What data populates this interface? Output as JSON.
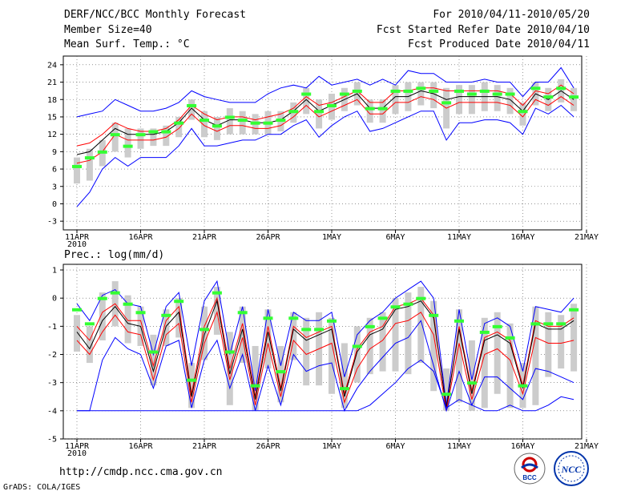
{
  "header": {
    "title": "DERF/NCC/BCC Monthly Forecast",
    "member_size": "Member Size=40",
    "variable": "Mean Surf. Temp.: °C",
    "period": "For 2010/04/11-2010/05/20",
    "started": "Fcst Started Refer Date 2010/04/10",
    "produced": "Fcst Produced Date 2010/04/11"
  },
  "footer": {
    "url": "http://cmdp.ncc.cma.gov.cn",
    "credit": "GrADS: COLA/IGES",
    "logo_bcc": "BCC",
    "logo_ncc": "NCC"
  },
  "colors": {
    "max_min": "#0000ff",
    "spread": "#ff0000",
    "mean": "#000000",
    "median": "#33ff33",
    "box": "#cccccc"
  },
  "chart_data": [
    {
      "type": "line",
      "title": "Mean Surf. Temp.: °C",
      "x": [
        "11APR",
        "12APR",
        "13APR",
        "14APR",
        "15APR",
        "16APR",
        "17APR",
        "18APR",
        "19APR",
        "20APR",
        "21APR",
        "22APR",
        "23APR",
        "24APR",
        "25APR",
        "26APR",
        "27APR",
        "28APR",
        "29APR",
        "30APR",
        "1MAY",
        "2MAY",
        "3MAY",
        "4MAY",
        "5MAY",
        "6MAY",
        "7MAY",
        "8MAY",
        "9MAY",
        "10MAY",
        "11MAY",
        "12MAY",
        "13MAY",
        "14MAY",
        "15MAY",
        "16MAY",
        "17MAY",
        "18MAY",
        "19MAY",
        "20MAY"
      ],
      "xticks": [
        "11APR",
        "16APR",
        "21APR",
        "26APR",
        "1MAY",
        "6MAY",
        "11MAY",
        "16MAY",
        "21MAY"
      ],
      "xtick_year": "2010",
      "ylim": [
        -4,
        25
      ],
      "yticks": [
        "24",
        "21",
        "18",
        "15",
        "12",
        "9",
        "6",
        "3",
        "0",
        "-3"
      ],
      "series": [
        {
          "name": "max",
          "values": [
            15,
            15.5,
            16,
            18,
            17,
            16,
            16,
            16.5,
            17.5,
            19.5,
            18.5,
            18,
            17.5,
            17.5,
            17.5,
            19,
            20,
            20.5,
            20,
            22,
            20.5,
            21,
            21.5,
            20.5,
            21.5,
            20.5,
            23,
            22.5,
            22.5,
            21,
            21,
            21,
            21.5,
            21,
            21,
            18.5,
            21,
            21,
            23.5,
            20
          ]
        },
        {
          "name": "upper",
          "values": [
            10,
            10.5,
            12,
            14,
            13,
            12.5,
            12.5,
            13,
            14.5,
            17,
            15.5,
            14.5,
            15,
            15,
            14.5,
            15,
            15.5,
            16.5,
            18.5,
            17,
            17.5,
            18.5,
            19.5,
            17.5,
            17.5,
            19.5,
            19.5,
            20,
            20,
            19.5,
            19.5,
            19.5,
            19.5,
            19.5,
            19,
            17,
            19.5,
            19,
            20.5,
            19
          ]
        },
        {
          "name": "mean",
          "values": [
            8.5,
            9,
            11,
            13,
            12,
            12,
            12,
            12.5,
            14,
            16.5,
            14.5,
            13.5,
            14.5,
            14.5,
            14,
            14,
            14.5,
            16,
            18,
            16,
            17,
            18,
            19,
            16.5,
            16.5,
            18.5,
            18.5,
            19.5,
            19,
            18,
            18.5,
            18.5,
            18.5,
            18.5,
            18,
            16,
            19,
            18,
            19.5,
            18
          ]
        },
        {
          "name": "lower",
          "values": [
            7,
            7.5,
            9,
            12,
            11,
            11,
            11,
            11.5,
            13,
            15.5,
            13.5,
            12.5,
            13.5,
            13.5,
            13,
            13,
            13.5,
            15,
            17,
            15,
            16,
            17,
            18,
            15.5,
            15.5,
            17.5,
            17.5,
            18.5,
            18,
            16.5,
            17.5,
            17.5,
            17.5,
            17.5,
            17,
            15,
            18,
            17,
            18.5,
            17
          ]
        },
        {
          "name": "min",
          "values": [
            -0.5,
            2,
            6,
            8,
            6.5,
            8,
            8,
            8,
            10,
            13,
            10,
            10,
            10.5,
            11,
            11,
            12,
            12,
            13.5,
            14.5,
            11.5,
            13.5,
            15,
            16,
            12.5,
            13,
            14,
            15,
            16,
            16,
            11,
            14,
            14,
            14.5,
            14.5,
            14,
            12,
            16.5,
            15.5,
            17,
            15
          ]
        },
        {
          "name": "median",
          "values": [
            6.5,
            8,
            9,
            12,
            10,
            12,
            12.5,
            12.5,
            14,
            17,
            14.5,
            13.5,
            15,
            14.5,
            14,
            14,
            14.5,
            16,
            19,
            16,
            17,
            19,
            19.5,
            16.5,
            16.5,
            19.5,
            19.5,
            20,
            19.5,
            17.5,
            19.5,
            19,
            19.5,
            19,
            19,
            16,
            20,
            18.5,
            20,
            18.5
          ]
        }
      ],
      "boxes": {
        "q75": [
          8,
          9.5,
          11,
          14,
          13,
          13,
          13,
          13.5,
          15,
          18,
          16,
          15,
          16.5,
          16,
          15.5,
          16,
          16,
          17.5,
          20,
          18,
          19,
          20,
          21,
          18,
          18,
          20.5,
          21,
          21,
          21,
          20,
          20.5,
          20.5,
          21,
          20.5,
          20,
          17.5,
          21,
          20,
          21.5,
          20
        ],
        "q25": [
          3.5,
          4,
          6.5,
          9,
          8,
          9.5,
          10,
          10,
          11.5,
          14.5,
          11.5,
          11,
          12,
          12,
          12,
          12,
          12.5,
          14,
          15.5,
          13,
          14.5,
          16,
          17,
          14,
          14,
          15.5,
          16,
          17,
          16.5,
          13,
          15.5,
          15.5,
          16,
          16,
          15.5,
          13.5,
          17,
          16,
          17.5,
          16
        ]
      }
    },
    {
      "type": "line",
      "title": "Prec.: log(mm/d)",
      "x": [
        "11APR",
        "12APR",
        "13APR",
        "14APR",
        "15APR",
        "16APR",
        "17APR",
        "18APR",
        "19APR",
        "20APR",
        "21APR",
        "22APR",
        "23APR",
        "24APR",
        "25APR",
        "26APR",
        "27APR",
        "28APR",
        "29APR",
        "30APR",
        "1MAY",
        "2MAY",
        "3MAY",
        "4MAY",
        "5MAY",
        "6MAY",
        "7MAY",
        "8MAY",
        "9MAY",
        "10MAY",
        "11MAY",
        "12MAY",
        "13MAY",
        "14MAY",
        "15MAY",
        "16MAY",
        "17MAY",
        "18MAY",
        "19MAY",
        "20MAY"
      ],
      "xticks": [
        "11APR",
        "16APR",
        "21APR",
        "26APR",
        "1MAY",
        "6MAY",
        "11MAY",
        "16MAY",
        "21MAY"
      ],
      "xtick_year": "2010",
      "ylim": [
        -5,
        1.2
      ],
      "yticks": [
        "1",
        "0",
        "-1",
        "-2",
        "-3",
        "-4",
        "-5"
      ],
      "series": [
        {
          "name": "max",
          "values": [
            -0.2,
            -0.8,
            0.1,
            0.3,
            -0.2,
            -0.3,
            -2,
            -0.3,
            0.2,
            -2.4,
            -0.1,
            0.6,
            -2,
            -0.3,
            -3.3,
            -0.4,
            -2.4,
            -0.5,
            -0.8,
            -0.8,
            -0.5,
            -2.8,
            -1.3,
            -0.8,
            -0.5,
            0,
            0.3,
            0.6,
            0,
            -3.8,
            -0.4,
            -2.9,
            -0.9,
            -0.7,
            -1,
            -2.6,
            -0.3,
            -0.4,
            -0.5,
            0
          ]
        },
        {
          "name": "upper",
          "values": [
            -1,
            -1.5,
            -0.5,
            -0.2,
            -0.8,
            -0.8,
            -2.4,
            -0.8,
            -0.3,
            -3.4,
            -1,
            0,
            -2.5,
            -0.9,
            -3.5,
            -1,
            -3.2,
            -1,
            -1.4,
            -1.2,
            -1,
            -3.4,
            -1.8,
            -1.2,
            -1,
            -0.3,
            -0.2,
            0,
            -0.6,
            -3.9,
            -1,
            -3.3,
            -1.4,
            -1.2,
            -1.5,
            -3.1,
            -0.8,
            -1,
            -1,
            -0.7
          ]
        },
        {
          "name": "mean",
          "values": [
            -1.2,
            -1.8,
            -0.8,
            -0.3,
            -0.9,
            -1,
            -2.6,
            -1,
            -0.5,
            -3.5,
            -1.3,
            -0.1,
            -2.7,
            -1.1,
            -3.6,
            -1.2,
            -3.3,
            -1.1,
            -1.5,
            -1.3,
            -1.1,
            -3.5,
            -1.9,
            -1.3,
            -1.1,
            -0.4,
            -0.3,
            -0.1,
            -0.7,
            -3.9,
            -1.1,
            -3.4,
            -1.5,
            -1.3,
            -1.6,
            -3.2,
            -0.9,
            -1.1,
            -1.1,
            -0.8
          ]
        },
        {
          "name": "lower",
          "values": [
            -1.5,
            -2,
            -1.2,
            -0.6,
            -1.2,
            -1.3,
            -2.9,
            -1.3,
            -0.9,
            -3.7,
            -1.6,
            -0.5,
            -2.9,
            -1.4,
            -3.8,
            -1.6,
            -3.5,
            -1.5,
            -2,
            -1.8,
            -1.6,
            -3.7,
            -2.5,
            -1.8,
            -1.5,
            -0.9,
            -0.8,
            -0.5,
            -1.3,
            -4,
            -1.6,
            -3.6,
            -2,
            -1.8,
            -2.2,
            -3.4,
            -1.4,
            -1.6,
            -1.6,
            -1.5
          ]
        },
        {
          "name": "min",
          "values": [
            -4,
            -4,
            -2.2,
            -1.4,
            -1.8,
            -2,
            -3.2,
            -1.7,
            -1.5,
            -3.9,
            -2.2,
            -1.5,
            -3.2,
            -2,
            -4,
            -2.4,
            -3.8,
            -2,
            -2.6,
            -2.4,
            -2.3,
            -4,
            -3.2,
            -2.6,
            -2.1,
            -1.6,
            -1.4,
            -0.8,
            -2.4,
            -4,
            -2.6,
            -3.8,
            -2.8,
            -2.8,
            -3.2,
            -3.6,
            -2.5,
            -2.6,
            -2.8,
            -3
          ]
        },
        {
          "name": "floor",
          "values": [
            -4,
            -4,
            -4,
            -4,
            -4,
            -4,
            -4,
            -4,
            -4,
            -4,
            -4,
            -4,
            -4,
            -4,
            -4,
            -4,
            -4,
            -4,
            -4,
            -4,
            -4,
            -4,
            -4,
            -3.8,
            -3.4,
            -3,
            -2.5,
            -2.2,
            -2.6,
            -3.9,
            -3.6,
            -3.8,
            -4,
            -4,
            -3.8,
            -4,
            -4,
            -3.8,
            -3.5,
            -3.6
          ]
        },
        {
          "name": "median",
          "values": [
            -0.4,
            -0.9,
            0,
            0.2,
            -0.2,
            -0.5,
            -1.9,
            -0.6,
            -0.1,
            -2.9,
            -1.1,
            0.2,
            -1.9,
            -0.5,
            -3.1,
            -0.7,
            -2.6,
            -0.7,
            -1.1,
            -1.1,
            -0.8,
            -3.2,
            -1.7,
            -1,
            -0.7,
            -0.3,
            -0.2,
            0,
            -0.6,
            -3.4,
            -0.8,
            -3,
            -1.2,
            -1,
            -1.4,
            -3.1,
            -0.9,
            -0.9,
            -0.9,
            -0.4
          ]
        }
      ],
      "boxes": {
        "q75": [
          -0.6,
          -1,
          0.2,
          0.6,
          0.1,
          -0.3,
          -1.3,
          -0.4,
          0,
          -2.3,
          -0.3,
          0.4,
          -1.2,
          -0.3,
          -1.7,
          -0.4,
          -1.7,
          -0.5,
          -0.7,
          -0.5,
          -0.7,
          -1.6,
          -1,
          -0.7,
          -0.5,
          0,
          0.2,
          0.4,
          -0.1,
          -2.5,
          -0.4,
          -1.5,
          -0.7,
          -0.5,
          -0.9,
          -2.3,
          -0.3,
          -0.5,
          -0.6,
          -0.2
        ],
        "q25": [
          -1.9,
          -2.3,
          -1.5,
          -1,
          -1.6,
          -1.7,
          -3.1,
          -1.7,
          -1.4,
          -3.9,
          -2.2,
          -1.3,
          -3.8,
          -2.3,
          -4,
          -2.5,
          -3.7,
          -2.2,
          -3.1,
          -3.1,
          -3.4,
          -3.9,
          -3,
          -2.7,
          -2.6,
          -2.6,
          -2.7,
          -2.3,
          -3.3,
          -4,
          -3.7,
          -4,
          -3.9,
          -3.4,
          -3.9,
          -3.9,
          -3.8,
          -2.8,
          -2.5,
          -2.6
        ]
      }
    }
  ]
}
